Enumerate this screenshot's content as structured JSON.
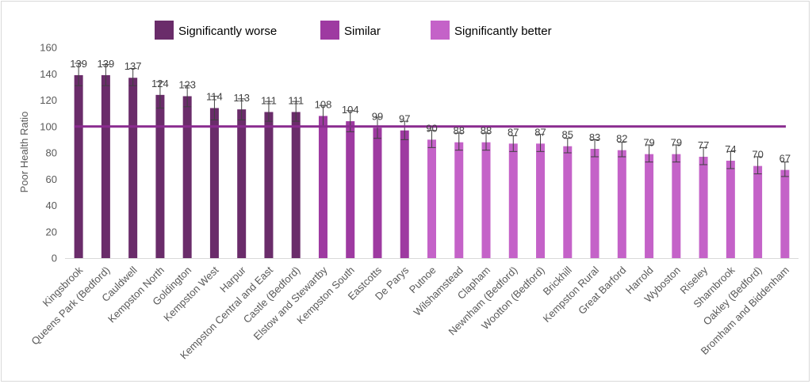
{
  "chart_data": {
    "type": "bar",
    "ylabel": "Poor Health Ratio",
    "ylim": [
      0,
      160
    ],
    "yticks": [
      0,
      20,
      40,
      60,
      80,
      100,
      120,
      140,
      160
    ],
    "reference_value": 100,
    "grid": false,
    "legend_placement": "top",
    "legend": [
      {
        "name": "Significantly worse",
        "color": "#6a2c6a"
      },
      {
        "name": "Similar",
        "color": "#9e3aa1"
      },
      {
        "name": "Significantly better",
        "color": "#c462c8"
      }
    ],
    "categories": [
      "Kingsbrook",
      "Queens Park (Bedford)",
      "Cauldwell",
      "Kempston North",
      "Goldington",
      "Kempston West",
      "Harpur",
      "Kempston Central and East",
      "Castle (Bedford)",
      "Elstow and Stewartby",
      "Kempston South",
      "Eastcotts",
      "De Parys",
      "Putnoe",
      "Wilshamstead",
      "Clapham",
      "Newnham (Bedford)",
      "Wootton (Bedford)",
      "Brickhill",
      "Kempston Rural",
      "Great Barford",
      "Harrold",
      "Wyboston",
      "Riseley",
      "Sharnbrook",
      "Oakley (Bedford)",
      "Bromham and Biddenham"
    ],
    "values": [
      139,
      139,
      137,
      124,
      123,
      114,
      113,
      111,
      111,
      108,
      104,
      99,
      97,
      90,
      88,
      88,
      87,
      87,
      85,
      83,
      82,
      79,
      79,
      77,
      74,
      70,
      67
    ],
    "groups": [
      0,
      0,
      0,
      0,
      0,
      0,
      0,
      0,
      0,
      1,
      1,
      1,
      1,
      2,
      2,
      2,
      2,
      2,
      2,
      2,
      2,
      2,
      2,
      2,
      2,
      2,
      2
    ],
    "error_low": [
      131,
      131,
      131,
      114,
      115,
      105,
      105,
      104,
      104,
      100,
      96,
      91,
      90,
      84,
      82,
      82,
      81,
      81,
      80,
      77,
      77,
      73,
      73,
      71,
      68,
      64,
      62
    ],
    "error_high": [
      148,
      147,
      144,
      134,
      131,
      123,
      121,
      119,
      119,
      116,
      112,
      107,
      104,
      97,
      95,
      95,
      93,
      94,
      91,
      90,
      88,
      86,
      86,
      84,
      81,
      77,
      73
    ],
    "reference_line_color": "#8a2b8f"
  }
}
